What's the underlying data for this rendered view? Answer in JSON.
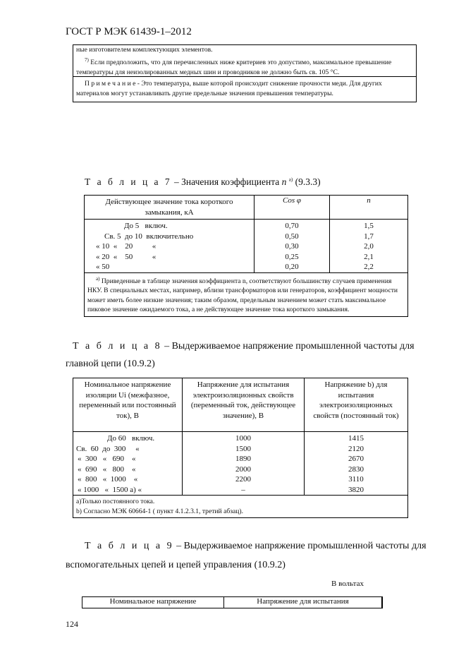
{
  "header": {
    "doc_id": "ГОСТ Р МЭК 61439-1–2012"
  },
  "top_box": {
    "line1": "ные изготовителем комплектующих элементов.",
    "footnote7_mark": "7)",
    "footnote7": "Если предположить, что для перечисленных ниже критериев это допустимо, максимальное превышение температуры для неизолированных медных шин и проводников не должно быть св. 105 °C.",
    "note_label": "П р и м е ч а н и е",
    "note_text": " - Это температура, выше которой происходит снижение прочности меди. Для других материалов могут устанавливать другие предельные значения превышения температуры."
  },
  "table7": {
    "caption_label": "Т а б л и ц а  7",
    "caption_text": " – Значения коэффициента ",
    "caption_var": "n",
    "caption_sup": "а)",
    "caption_ref": " (9.3.3)",
    "headers": [
      "Действующее значение тока короткого замыкания, кА",
      "Cos φ",
      "n"
    ],
    "rows": [
      [
        "До 5   включ.",
        "0,70",
        "1,5"
      ],
      [
        "Св. 5  до 10  включительно",
        "0,50",
        "1,7"
      ],
      [
        "« 10  «    20          «",
        "0,30",
        "2,0"
      ],
      [
        "« 20  «    50          «",
        "0,25",
        "2,1"
      ],
      [
        "« 50",
        "0,20",
        "2,2"
      ]
    ],
    "footnote_mark": "а)",
    "footnote": "Приведенные в таблице значения коэффициента n, соответствуют большинству случаев применения НКУ. В специальных местах, например, вблизи трансформаторов или генераторов, коэффициент мощности может иметь более низкие значения; таким образом, предельным значением может стать максимальное пиковое значение ожидаемого тока, а не действующее значение тока короткого замыкания."
  },
  "table8": {
    "caption_label": "Т а б л и ц а  8",
    "caption_text": " – Выдерживаемое напряжение промышленной частоты для",
    "caption_line2": "главной цепи (10.9.2)",
    "headers": [
      "Номинальное напряжение изоляции Ui (межфазное, переменный или постоянный ток), В",
      "Напряжение для испытания электроизоляционных свойств (переменный ток, действующее значение), В",
      "Напряжение b) для испытания электроизоляционных свойств (постоянный ток)"
    ],
    "rows": [
      [
        "До 60   включ.",
        "1000",
        "1415"
      ],
      [
        "Св.  60  до  300     «",
        "1500",
        "2120"
      ],
      [
        "«  300   «   690    «",
        "1890",
        "2670"
      ],
      [
        "«  690   «   800    «",
        "2000",
        "2830"
      ],
      [
        "«  800   «  1000    «",
        "2200",
        "3110"
      ],
      [
        "« 1000   «  1500 а) «",
        "–",
        "3820"
      ]
    ],
    "footnote_a": "а)Только постоянного тока.",
    "footnote_b": "b) Согласно МЭК 60664-1 ( пункт 4.1.2.3.1, третий абзац)."
  },
  "table9": {
    "caption_label": "Т а б л и ц а  9",
    "caption_text": " – Выдерживаемое напряжение промышленной частоты для",
    "caption_line2": "вспомогательных цепей и цепей управления (10.9.2)",
    "units": "В вольтах",
    "headers": [
      "Номинальное напряжение",
      "Напряжение для испытания"
    ]
  },
  "footer": {
    "page_number": "124"
  }
}
